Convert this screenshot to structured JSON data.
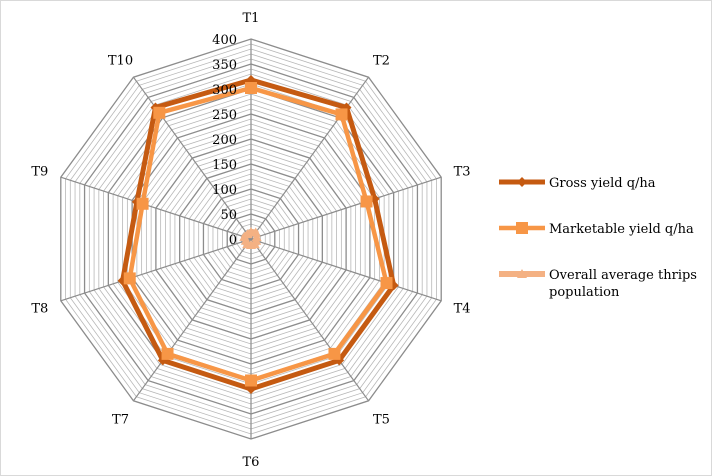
{
  "chart_data": {
    "type": "radar",
    "title": "",
    "categories": [
      "T1",
      "T2",
      "T3",
      "T4",
      "T5",
      "T6",
      "T7",
      "T8",
      "T9",
      "T10"
    ],
    "rlim": [
      0,
      400
    ],
    "ticks": [
      0,
      50,
      100,
      150,
      200,
      250,
      300,
      350,
      400
    ],
    "minor_step": 10,
    "grid": true,
    "legend_position": "right",
    "series": [
      {
        "name": "Gross yield q/ha",
        "color": "#c55a11",
        "marker": "diamond",
        "values": [
          318,
          325,
          260,
          300,
          300,
          300,
          300,
          270,
          240,
          325
        ]
      },
      {
        "name": "Marketable yield q/ha",
        "color": "#f79646",
        "marker": "square",
        "values": [
          302,
          308,
          243,
          285,
          284,
          283,
          284,
          255,
          228,
          312
        ]
      },
      {
        "name": "Overall average thrips population",
        "color": "#f4b183",
        "marker": "triangle",
        "values": [
          14,
          16,
          12,
          11,
          13,
          12,
          13,
          11,
          14,
          12
        ]
      }
    ]
  }
}
